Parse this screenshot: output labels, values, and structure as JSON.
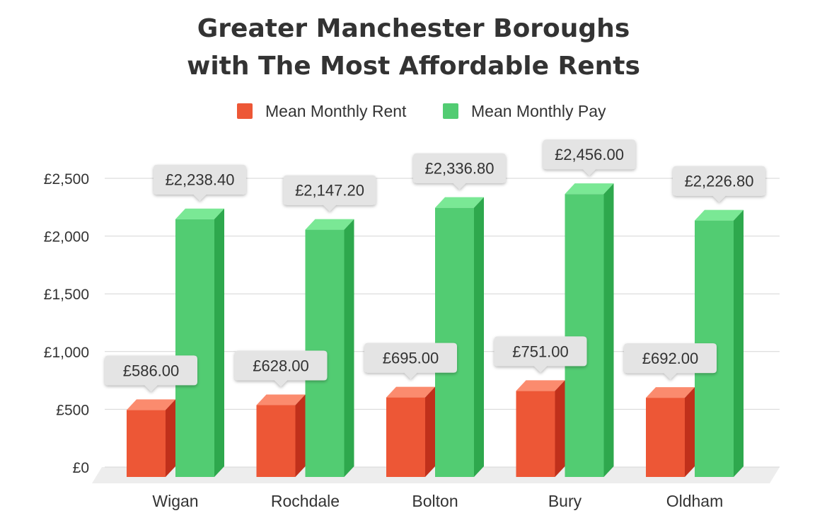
{
  "chart_data": {
    "type": "bar",
    "title_lines": [
      "Greater Manchester Boroughs",
      "with The Most Affordable Rents"
    ],
    "categories": [
      "Wigan",
      "Rochdale",
      "Bolton",
      "Bury",
      "Oldham"
    ],
    "series": [
      {
        "name": "Mean Monthly Rent",
        "values": [
          586.0,
          628.0,
          695.0,
          751.0,
          692.0
        ],
        "labels": [
          "£586.00",
          "£628.00",
          "£695.00",
          "£751.00",
          "£692.00"
        ],
        "colors": {
          "front": "#ed5736",
          "top": "#fb8b6e",
          "side": "#c0301b"
        }
      },
      {
        "name": "Mean Monthly Pay",
        "values": [
          2238.4,
          2147.2,
          2336.8,
          2456.0,
          2226.8
        ],
        "labels": [
          "£2,238.40",
          "£2,147.20",
          "£2,336.80",
          "£2,456.00",
          "£2,226.80"
        ],
        "colors": {
          "front": "#52cc72",
          "top": "#7ae895",
          "side": "#2ea84d"
        }
      }
    ],
    "y_ticks": [
      {
        "value": 0,
        "label": "£0"
      },
      {
        "value": 500,
        "label": "£500"
      },
      {
        "value": 1000,
        "label": "£1,000"
      },
      {
        "value": 1500,
        "label": "£1,500"
      },
      {
        "value": 2000,
        "label": "£2,000"
      },
      {
        "value": 2500,
        "label": "£2,500"
      }
    ],
    "ylim": [
      0,
      2500
    ],
    "grid": true,
    "legend_position": "top-center",
    "three_d": true
  }
}
